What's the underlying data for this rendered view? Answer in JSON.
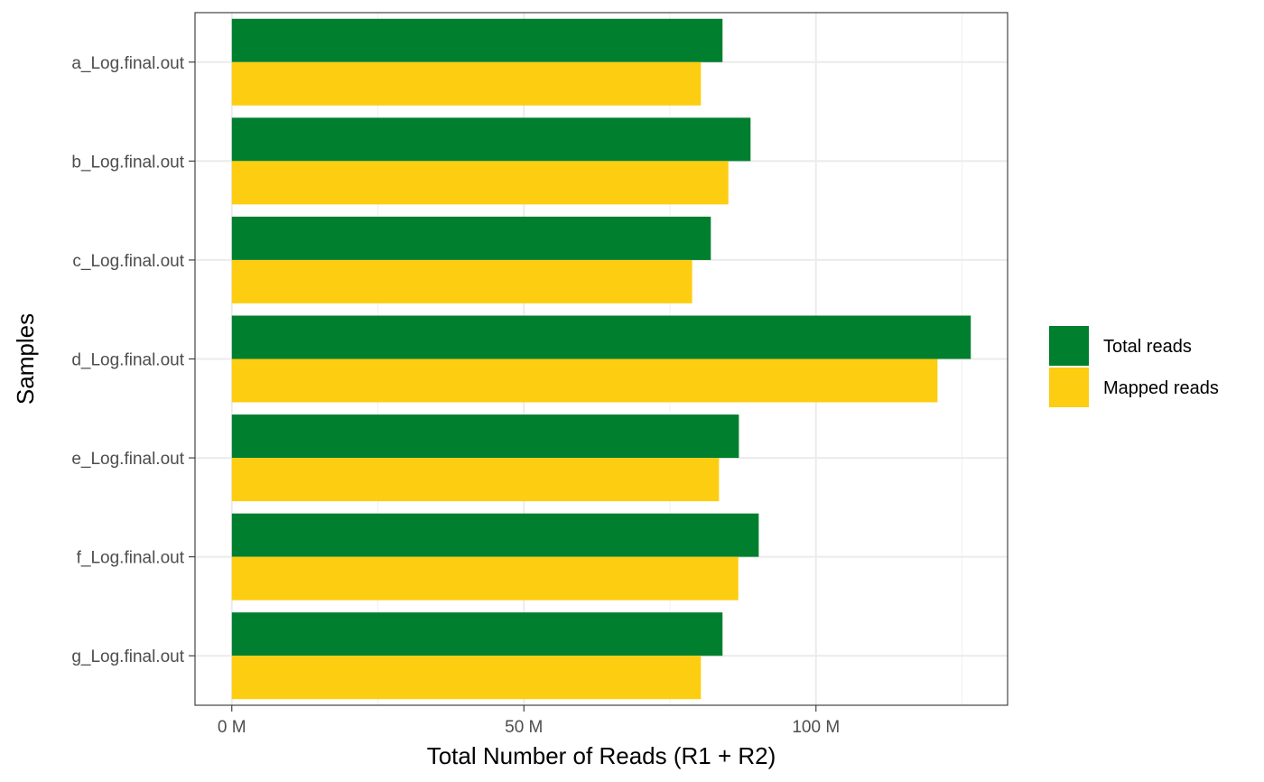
{
  "chart_data": {
    "type": "bar",
    "orientation": "horizontal",
    "categories": [
      "a_Log.final.out",
      "b_Log.final.out",
      "c_Log.final.out",
      "d_Log.final.out",
      "e_Log.final.out",
      "f_Log.final.out",
      "g_Log.final.out"
    ],
    "series": [
      {
        "name": "Total reads",
        "color": "#007f2f",
        "values": [
          84.0,
          88.8,
          82.0,
          126.5,
          86.8,
          90.2,
          84.0
        ]
      },
      {
        "name": "Mapped reads",
        "color": "#fdcd11",
        "values": [
          80.3,
          85.0,
          78.8,
          120.8,
          83.4,
          86.7,
          80.3
        ]
      }
    ],
    "title": "",
    "xlabel": "Total Number of Reads (R1 + R2)",
    "ylabel": "Samples",
    "xlim": [
      -6.3,
      132.8
    ],
    "x_ticks": [
      0,
      50,
      100
    ],
    "x_tick_labels": [
      "0 M",
      "50 M",
      "100 M"
    ],
    "x_minor_ticks": [
      25,
      75,
      125
    ],
    "unit": "M",
    "grid": true,
    "legend_position": "right"
  }
}
